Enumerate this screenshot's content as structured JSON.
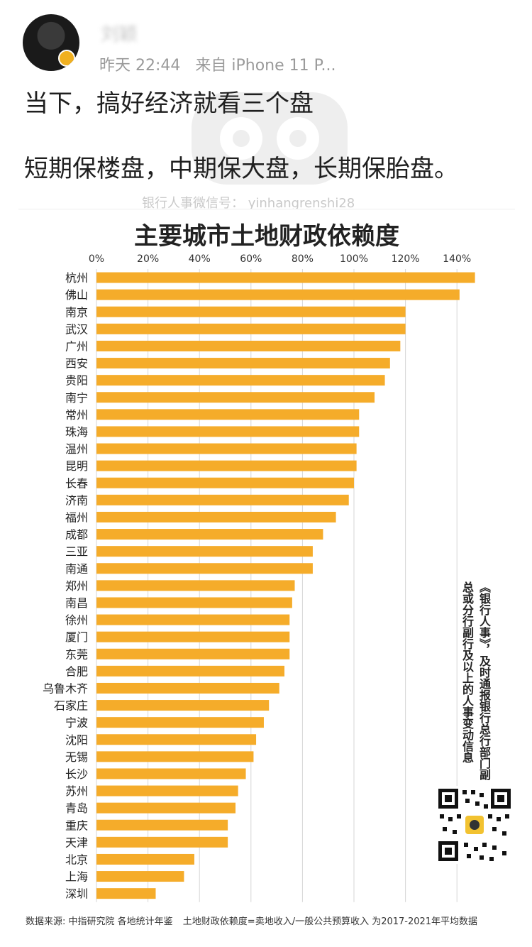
{
  "post": {
    "username": "刘颖",
    "time": "昨天 22:44",
    "source": "来自 iPhone 11 P...",
    "line1": "当下，搞好经济就看三个盘",
    "line2": "短期保楼盘，中期保大盘，长期保胎盘。",
    "watermark": "银行人事微信号： yinhangrenshi28"
  },
  "side_note": "《银行人事》，及时通报银行总行部门副总或分行副行及以上的人事变动信息",
  "footer": {
    "source": "数据来源: 中指研究院 各地统计年鉴",
    "definition": "土地财政依赖度=卖地收入/一般公共预算收入 为2017-2021年平均数据"
  },
  "colors": {
    "bar": "#f5ac2a",
    "grid": "#d6d6d6"
  },
  "chart_data": {
    "type": "bar",
    "orientation": "horizontal",
    "title": "主要城市土地财政依赖度",
    "xlim": [
      0,
      150
    ],
    "xticks": [
      0,
      20,
      40,
      60,
      80,
      100,
      120,
      140
    ],
    "xtick_labels": [
      "0%",
      "20%",
      "40%",
      "60%",
      "80%",
      "100%",
      "120%",
      "140%"
    ],
    "categories": [
      "杭州",
      "佛山",
      "南京",
      "武汉",
      "广州",
      "西安",
      "贵阳",
      "南宁",
      "常州",
      "珠海",
      "温州",
      "昆明",
      "长春",
      "济南",
      "福州",
      "成都",
      "三亚",
      "南通",
      "郑州",
      "南昌",
      "徐州",
      "厦门",
      "东莞",
      "合肥",
      "乌鲁木齐",
      "石家庄",
      "宁波",
      "沈阳",
      "无锡",
      "长沙",
      "苏州",
      "青岛",
      "重庆",
      "天津",
      "北京",
      "上海",
      "深圳"
    ],
    "values": [
      147,
      141,
      120,
      120,
      118,
      114,
      112,
      108,
      102,
      102,
      101,
      101,
      100,
      98,
      93,
      88,
      84,
      84,
      77,
      76,
      75,
      75,
      75,
      73,
      71,
      67,
      65,
      62,
      61,
      58,
      55,
      54,
      51,
      51,
      38,
      34,
      23
    ]
  }
}
